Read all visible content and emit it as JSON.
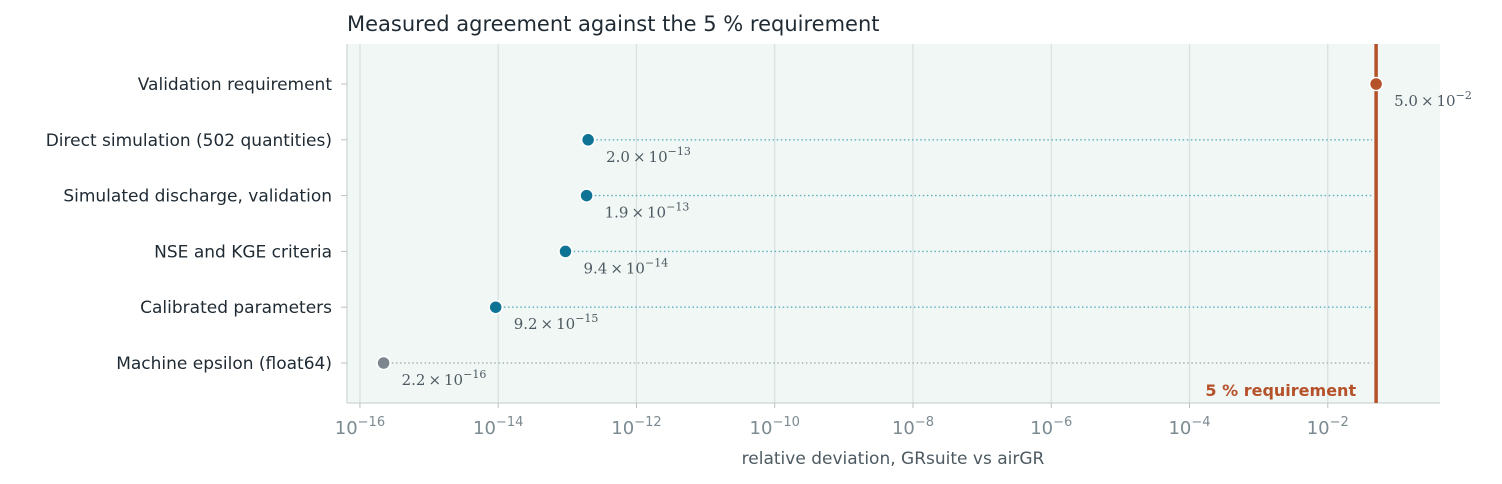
{
  "colors": {
    "accent": "#b5522a",
    "point": "#0f7396",
    "epsilon": "#7c868c",
    "plot_bg": "#f1f7f5",
    "dotted": "#5aaec0",
    "grid": "#d6e0de"
  },
  "chart_data": {
    "type": "scatter",
    "subtype": "lollipop-dot",
    "title": "Measured agreement against the 5 % requirement",
    "xlabel": "relative deviation, GRsuite vs airGR",
    "ylabel": "",
    "x_scale": "log",
    "xlim": [
      6.5e-17,
      0.42
    ],
    "x_ticks": [
      {
        "value": 1e-16,
        "exp": "−16"
      },
      {
        "value": 1e-14,
        "exp": "−14"
      },
      {
        "value": 1e-12,
        "exp": "−12"
      },
      {
        "value": 1e-10,
        "exp": "−10"
      },
      {
        "value": 1e-08,
        "exp": "−8"
      },
      {
        "value": 1e-06,
        "exp": "−6"
      },
      {
        "value": 0.0001,
        "exp": "−4"
      },
      {
        "value": 0.01,
        "exp": "−2"
      }
    ],
    "grid": true,
    "categories": [
      "Validation requirement",
      "Direct simulation (502 quantities)",
      "Simulated discharge, validation",
      "NSE and KGE criteria",
      "Calibrated parameters",
      "Machine epsilon (float64)"
    ],
    "points": [
      {
        "category": "Validation requirement",
        "value": 0.05,
        "mantissa": "5.0",
        "exp": "−2",
        "kind": "requirement"
      },
      {
        "category": "Direct simulation (502 quantities)",
        "value": 2e-13,
        "mantissa": "2.0",
        "exp": "−13",
        "kind": "measured"
      },
      {
        "category": "Simulated discharge, validation",
        "value": 1.9e-13,
        "mantissa": "1.9",
        "exp": "−13",
        "kind": "measured"
      },
      {
        "category": "NSE and KGE criteria",
        "value": 9.4e-14,
        "mantissa": "9.4",
        "exp": "−14",
        "kind": "measured"
      },
      {
        "category": "Calibrated parameters",
        "value": 9.2e-15,
        "mantissa": "9.2",
        "exp": "−15",
        "kind": "measured"
      },
      {
        "category": "Machine epsilon (float64)",
        "value": 2.2e-16,
        "mantissa": "2.2",
        "exp": "−16",
        "kind": "reference"
      }
    ],
    "threshold": {
      "value": 0.05,
      "label": "5 % requirement"
    }
  }
}
